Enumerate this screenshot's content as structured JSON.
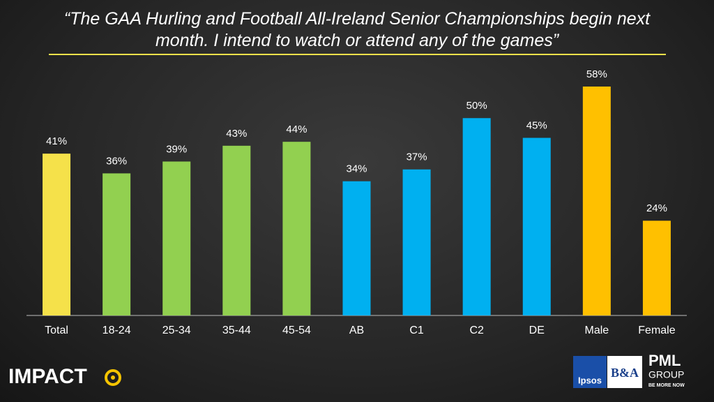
{
  "chart_data": {
    "type": "bar",
    "title": "“The GAA Hurling and Football All-Ireland Senior Championships begin next month. I intend to watch or attend any of the games”",
    "categories": [
      "Total",
      "18-24",
      "25-34",
      "35-44",
      "45-54",
      "AB",
      "C1",
      "C2",
      "DE",
      "Male",
      "Female"
    ],
    "values": [
      41,
      36,
      39,
      43,
      44,
      34,
      37,
      50,
      45,
      58,
      24
    ],
    "value_labels": [
      "41%",
      "36%",
      "39%",
      "43%",
      "44%",
      "34%",
      "37%",
      "50%",
      "45%",
      "58%",
      "24%"
    ],
    "colors": [
      "#f5e14a",
      "#92d050",
      "#92d050",
      "#92d050",
      "#92d050",
      "#00b0f0",
      "#00b0f0",
      "#00b0f0",
      "#00b0f0",
      "#ffc000",
      "#ffc000"
    ]
  },
  "logos": {
    "impact": "IMPACT",
    "ipsos": "Ipsos",
    "ba": "B&A",
    "pml": "PML",
    "group": "GROUP",
    "tagline": "BE MORE NOW"
  }
}
